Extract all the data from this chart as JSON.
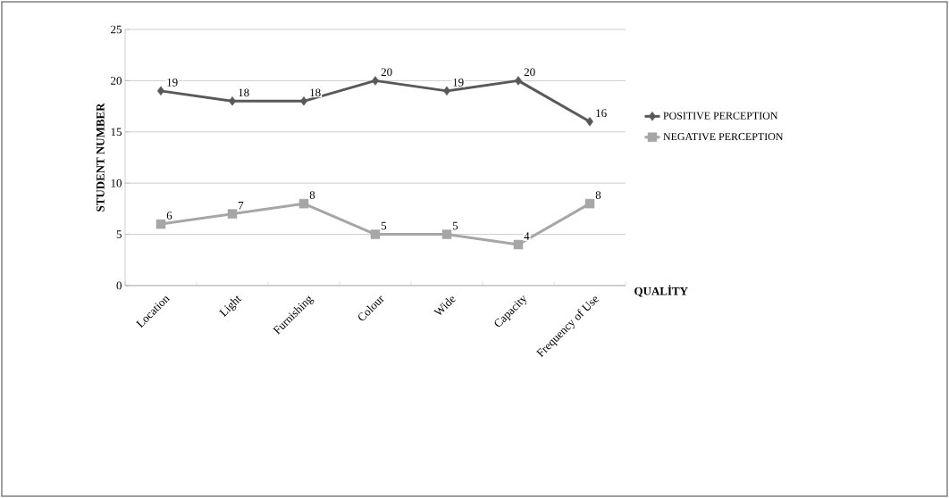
{
  "chart_data": {
    "type": "line",
    "xlabel": "QUALİTY",
    "ylabel": "STUDENT NUMBER",
    "categories": [
      "Location",
      "Light",
      "Furnishing",
      "Colour",
      "Wide",
      "Capacity",
      "Frequency of Use"
    ],
    "series": [
      {
        "name": "POSITIVE PERCEPTION",
        "color": "#595959",
        "marker": "diamond",
        "values": [
          19,
          18,
          18,
          20,
          19,
          20,
          16
        ]
      },
      {
        "name": "NEGATIVE PERCEPTION",
        "color": "#a6a6a6",
        "marker": "square",
        "values": [
          6,
          7,
          8,
          5,
          5,
          4,
          8
        ]
      }
    ],
    "ylim": [
      0,
      25
    ],
    "yticks": [
      0,
      5,
      10,
      15,
      20,
      25
    ],
    "grid": "y",
    "legend": "right",
    "data_labels": true
  }
}
